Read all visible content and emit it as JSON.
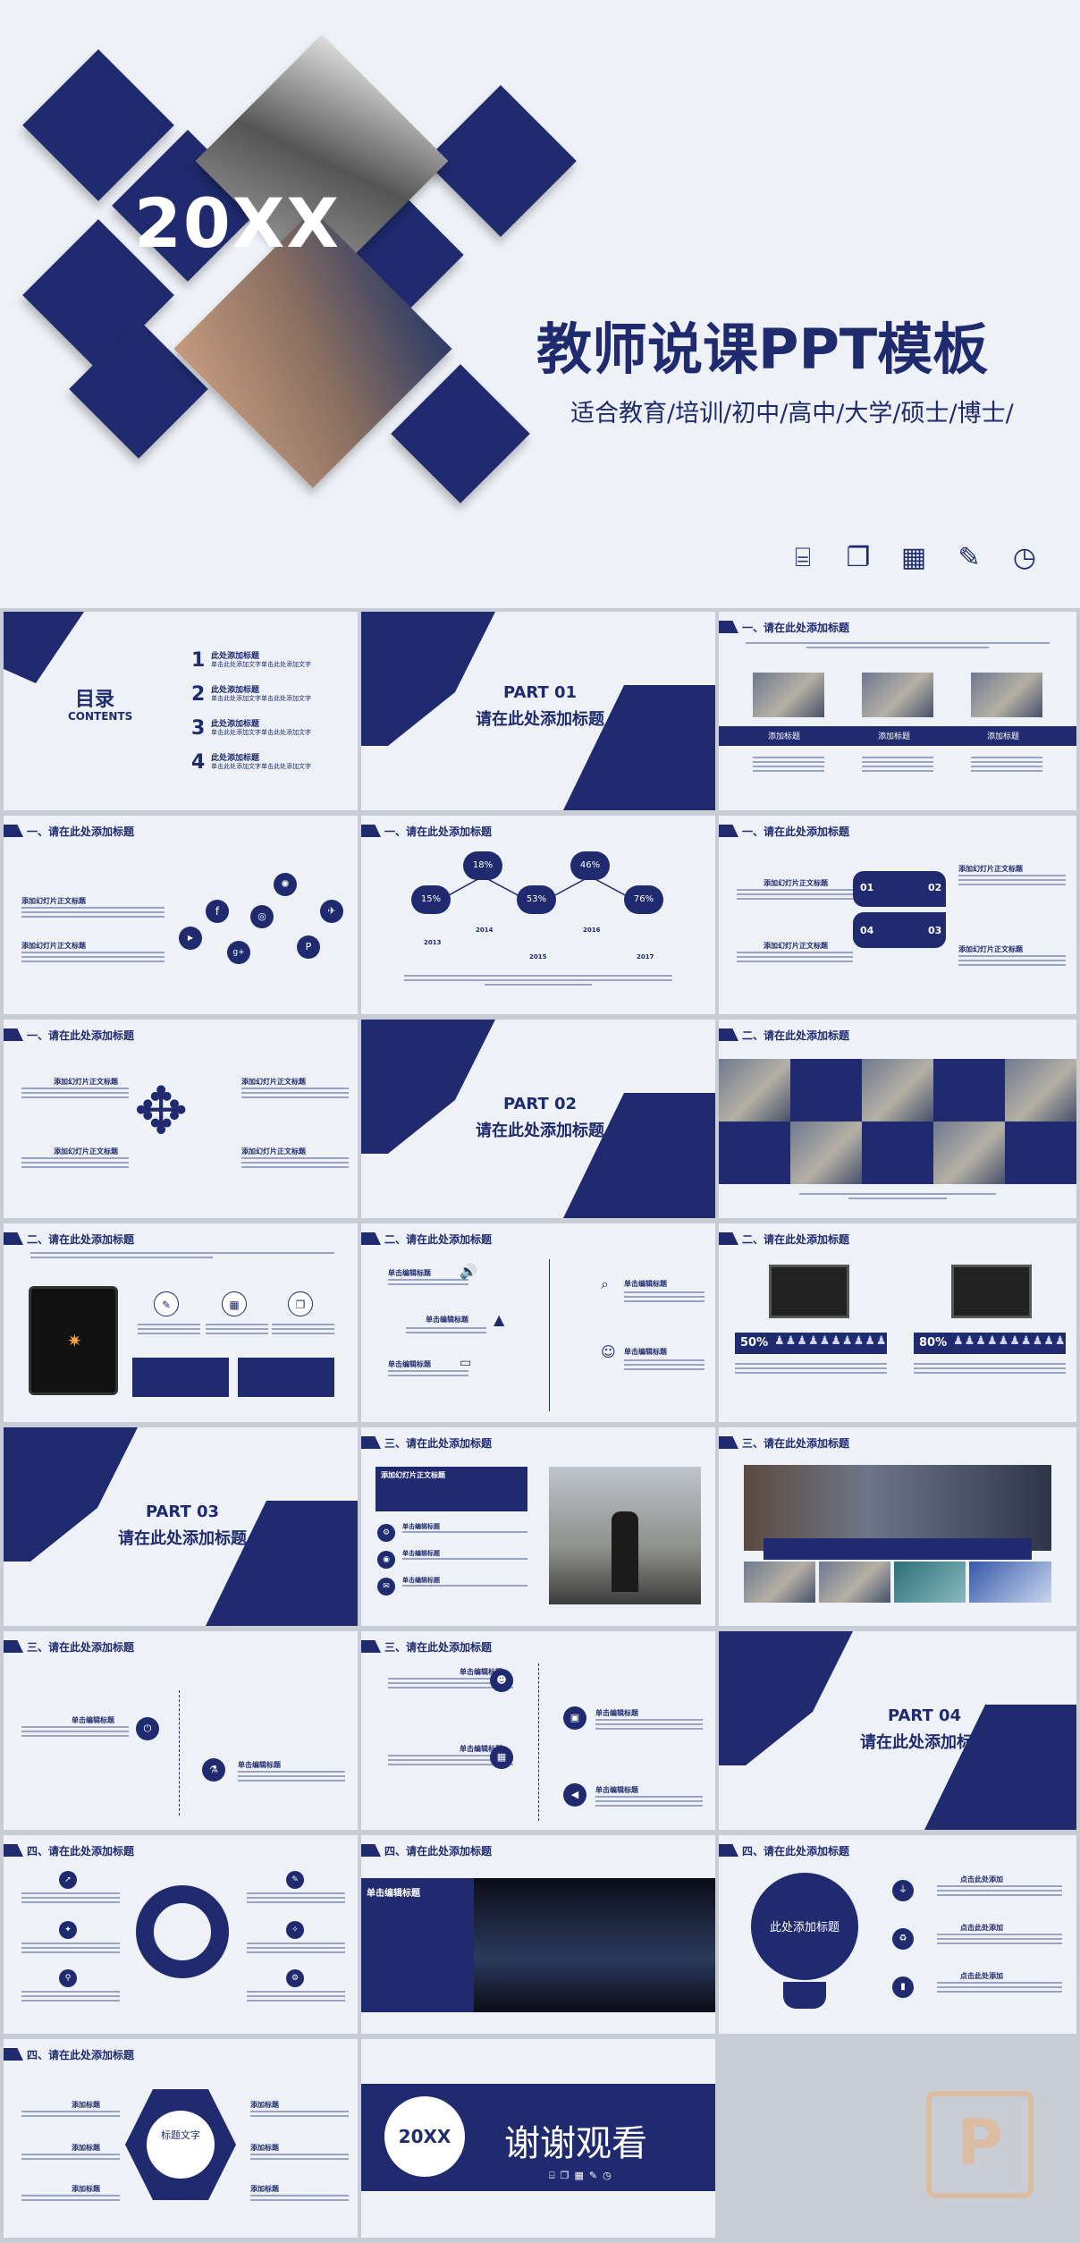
{
  "cover": {
    "year": "20XX",
    "title": "教师说课PPT模板",
    "subtitle": "适合教育/培训/初中/高中/大学/硕士/博士/",
    "icons": [
      "presentation-icon",
      "gallery-icon",
      "calendar-icon",
      "edit-icon",
      "clock-icon"
    ]
  },
  "toc": {
    "title": "目录",
    "subtitle": "CONTENTS",
    "items": [
      {
        "num": "1",
        "label": "此处添加标题",
        "desc": "单击此处添加文字单击此处添加文字"
      },
      {
        "num": "2",
        "label": "此处添加标题",
        "desc": "单击此处添加文字单击此处添加文字"
      },
      {
        "num": "3",
        "label": "此处添加标题",
        "desc": "单击此处添加文字单击此处添加文字"
      },
      {
        "num": "4",
        "label": "此处添加标题",
        "desc": "单击此处添加文字单击此处添加文字"
      }
    ]
  },
  "parts": [
    {
      "num": "PART 01",
      "title": "请在此处添加标题"
    },
    {
      "num": "PART 02",
      "title": "请在此处添加标题"
    },
    {
      "num": "PART 03",
      "title": "请在此处添加标题"
    },
    {
      "num": "PART 04",
      "title": "请在此处添加标题"
    }
  ],
  "headers": {
    "one": "一、请在此处添加标题",
    "two": "二、请在此处添加标题",
    "three": "三、请在此处添加标题",
    "four": "四、请在此处添加标题"
  },
  "labels": {
    "add_title": "添加标题",
    "add_slide_text": "添加幻灯片正文标题",
    "click_edit": "单击编辑标题",
    "click_add": "点击此处添加",
    "add_here": "此处添加标题",
    "label_text": "标题文字"
  },
  "timeline": {
    "percents": [
      "15%",
      "18%",
      "53%",
      "46%",
      "76%"
    ],
    "years": [
      "2013",
      "2014",
      "2015",
      "2016",
      "2017"
    ]
  },
  "cycle": [
    "01",
    "02",
    "03",
    "04"
  ],
  "stats": [
    "50%",
    "80%"
  ],
  "thanks": {
    "year": "20XX",
    "text": "谢谢观看"
  }
}
